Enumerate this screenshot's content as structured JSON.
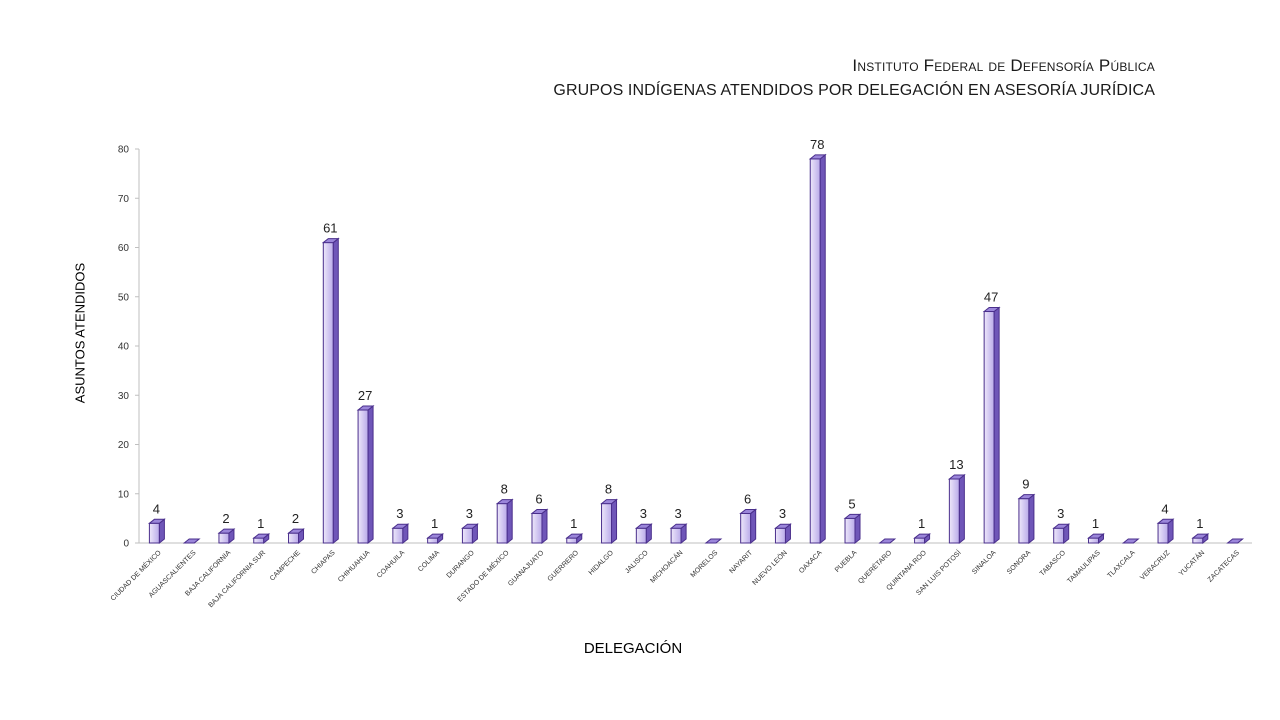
{
  "chart_data": {
    "type": "bar",
    "title": "Instituto Federal de Defensoría Pública",
    "subtitle": "GRUPOS  INDÍGENAS ATENDIDOS POR DELEGACIÓN EN ASESORÍA JURÍDICA",
    "xlabel": "DELEGACIÓN",
    "ylabel": "ASUNTOS ATENDIDOS",
    "ylim": [
      0,
      80
    ],
    "yticks": [
      0,
      10,
      20,
      30,
      40,
      50,
      60,
      70,
      80
    ],
    "grid": false,
    "categories": [
      "CIUDAD DE MÉXICO",
      "AGUASCALIENTES",
      "BAJA CALIFORNIA",
      "BAJA CALIFORNIA SUR",
      "CAMPECHE",
      "CHIAPAS",
      "CHIHUAHUA",
      "COAHUILA",
      "COLIMA",
      "DURANGO",
      "ESTADO DE MÉXICO",
      "GUANAJUATO",
      "GUERRERO",
      "HIDALGO",
      "JALISCO",
      "MICHOACÁN",
      "MORELOS",
      "NAYARIT",
      "NUEVO LEÓN",
      "OAXACA",
      "PUEBLA",
      "QUERÉTARO",
      "QUINTANA ROO",
      "SAN LUIS POTOSÍ",
      "SINALOA",
      "SONORA",
      "TABASCO",
      "TAMAULIPAS",
      "TLAXCALA",
      "VERACRUZ",
      "YUCATÁN",
      "ZACATECAS"
    ],
    "values": [
      4,
      0,
      2,
      1,
      2,
      61,
      27,
      3,
      1,
      3,
      8,
      6,
      1,
      8,
      3,
      3,
      0,
      6,
      3,
      78,
      5,
      0,
      1,
      13,
      47,
      9,
      3,
      1,
      0,
      4,
      1,
      0
    ],
    "data_labels_shown_for_zero": false,
    "colors": {
      "bar_front_light": "#e4dcf6",
      "bar_front_dark": "#b5a7e8",
      "bar_side": "#6f56b8",
      "bar_top": "#9b86da",
      "bar_outline": "#4a2f8c",
      "axis": "#bfbfbf"
    }
  }
}
